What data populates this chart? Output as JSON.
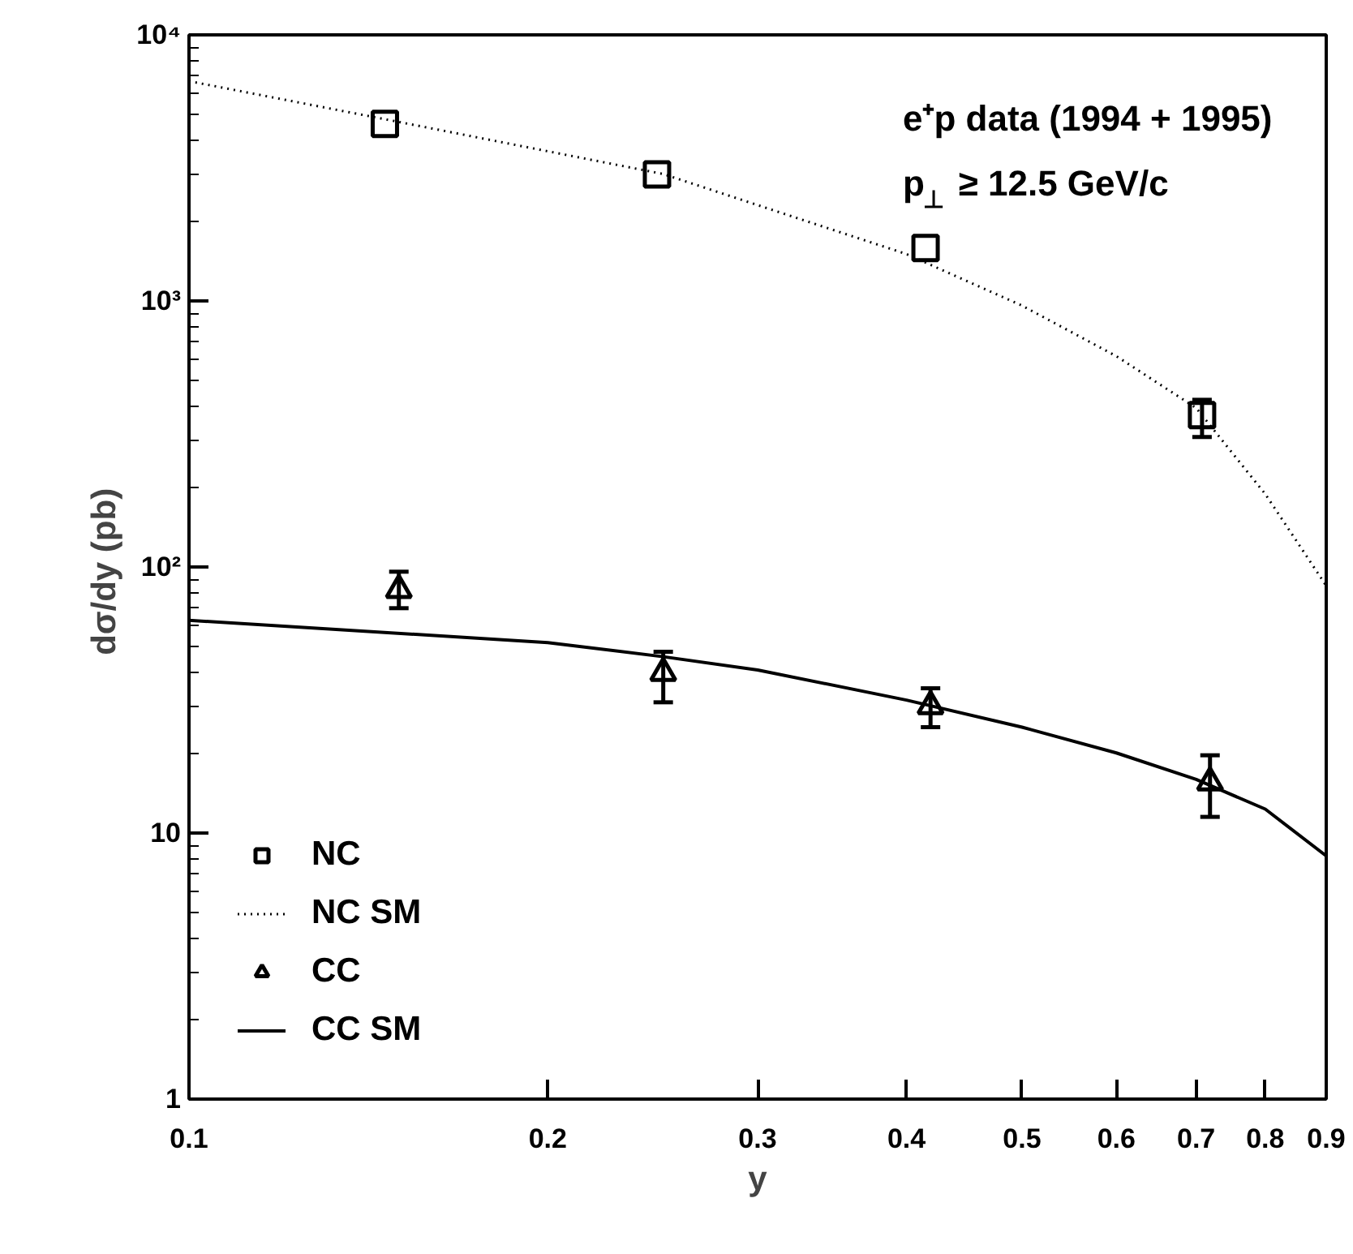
{
  "chart_data": {
    "type": "scatter",
    "xlabel": "y",
    "ylabel": "dσ/dy  (pb)",
    "annotations": [
      "e⁺p data (1994 + 1995)",
      "p$_{⊥}$ ≥ 12.5 GeV/c"
    ],
    "log": "xy",
    "grid": false,
    "legend": "bottom left",
    "xlim": [
      0.1,
      0.9
    ],
    "xticks": [
      0.1,
      0.2,
      0.3,
      0.4,
      0.5,
      0.6,
      0.7,
      0.8,
      0.9
    ],
    "ylim": [
      1,
      10000
    ],
    "yticks": [
      1,
      10,
      {
        "value": 100,
        "label": "10²"
      },
      {
        "value": 1000,
        "label": "10³"
      },
      {
        "value": 10000,
        "label": "10⁴"
      }
    ],
    "series": [
      {
        "name": "NC",
        "marker": "square",
        "color": "#000000",
        "x": [
          0.146,
          0.247,
          0.415,
          0.708
        ],
        "values": [
          4630,
          2990,
          1580,
          372
        ],
        "errors": [
          null,
          null,
          null,
          [
            308,
            425
          ]
        ]
      },
      {
        "name": "NC SM",
        "type": "line",
        "line_style": "dotted",
        "color": "#000000",
        "x": [
          0.1,
          0.146,
          0.25,
          0.4,
          0.5,
          0.6,
          0.7,
          0.8,
          0.85,
          0.9
        ],
        "values": [
          6700,
          4820,
          3000,
          1500,
          960,
          620,
          396,
          188,
          125,
          85
        ]
      },
      {
        "name": "CC",
        "marker": "triangle",
        "color": "#000000",
        "x": [
          0.15,
          0.25,
          0.419,
          0.719
        ],
        "values": [
          82,
          40,
          30,
          15.5
        ],
        "errors": [
          [
            70,
            96
          ],
          [
            31,
            48
          ],
          [
            25,
            35
          ],
          [
            11.5,
            19.6
          ]
        ]
      },
      {
        "name": "CC SM",
        "type": "line",
        "line_style": "solid",
        "color": "#000000",
        "x": [
          0.1,
          0.2,
          0.25,
          0.3,
          0.4,
          0.5,
          0.6,
          0.7,
          0.8,
          0.9
        ],
        "values": [
          63,
          52,
          46,
          41,
          31.6,
          25,
          20,
          15.9,
          12.3,
          8.2
        ]
      }
    ]
  }
}
